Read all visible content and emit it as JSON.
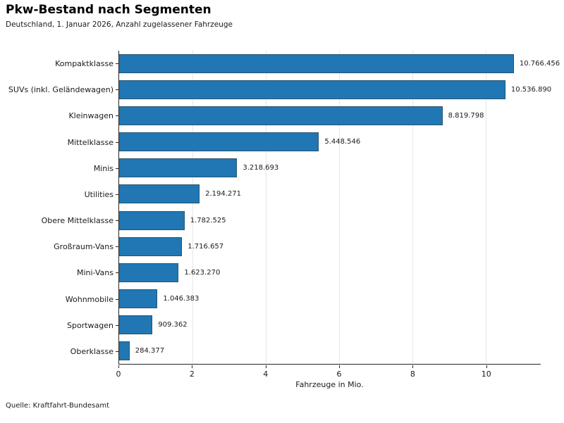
{
  "source": "Quelle: Kraftfahrt-Bundesamt",
  "colors": {
    "bar": "#2077b4",
    "bar_edge": "#27536f",
    "grid": "#e6e6e6",
    "axis": "#262626",
    "background": "#ffffff"
  },
  "chart_data": {
    "type": "bar",
    "orientation": "horizontal",
    "title": "Pkw-Bestand nach Segmenten",
    "subtitle": "Deutschland, 1. Januar 2026, Anzahl zugelassener Fahrzeuge",
    "categories": [
      "Kompaktklasse",
      "SUVs (inkl. Geländewagen)",
      "Kleinwagen",
      "Mittelklasse",
      "Minis",
      "Utilities",
      "Obere Mittelklasse",
      "Großraum-Vans",
      "Mini-Vans",
      "Wohnmobile",
      "Sportwagen",
      "Oberklasse"
    ],
    "values": [
      10766456,
      10536890,
      8819798,
      5448546,
      3218693,
      2194271,
      1782525,
      1716657,
      1623270,
      1046383,
      909362,
      284377
    ],
    "value_labels": [
      "10.766.456",
      "10.536.890",
      "8.819.798",
      "5.448.546",
      "3.218.693",
      "2.194.271",
      "1.782.525",
      "1.716.657",
      "1.623.270",
      "1.046.383",
      "909.362",
      "284.377"
    ],
    "unit_divisor": 1000000,
    "xlabel": "Fahrzeuge in Mio.",
    "xticks": [
      0,
      2,
      4,
      6,
      8,
      10
    ],
    "xlim": [
      0,
      11.5
    ],
    "grid": "vertical",
    "legend": "none"
  }
}
